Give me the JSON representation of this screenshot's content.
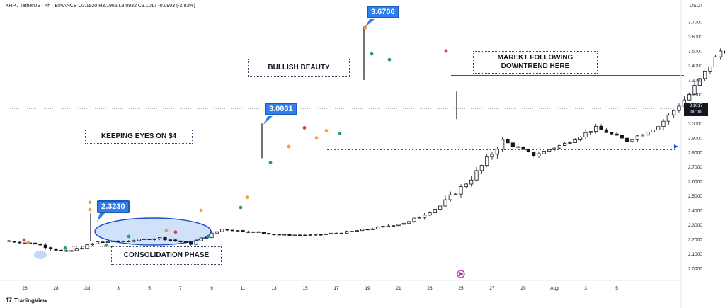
{
  "header": {
    "symbol": "XRP / TetherUS · 4h · BINANCE",
    "ohlc": "O3.1920 H3.1965 L3.0932 C3.1017 -0.0903 (-2.83%)",
    "currency": "USDT"
  },
  "branding": {
    "label": "TradingView"
  },
  "annotations": {
    "consolidation": "CONSOLIDATION PHASE",
    "keeping_eyes": "KEEPING EYES ON $4",
    "bullish": "BULLISH BEAUTY",
    "market_following": "MAREKT FOLLOWING DOWNTREND HERE",
    "callout_1": "2.3230",
    "callout_2": "3.0031",
    "callout_3": "3.6700"
  },
  "last_price": {
    "line1": "3.1017",
    "line2": "00:00"
  },
  "colors": {
    "up": "#131722",
    "down": "#131722",
    "callout": "#2f80ed",
    "resistance": "#1e50c8",
    "consolidation_fill": "#a9c8f5",
    "dot_orange": "#f0a040",
    "dot_red": "#d8403a",
    "dot_green": "#2a9d6a"
  },
  "chart_data": {
    "type": "candlestick",
    "x_ticks": [
      "26",
      "28",
      "Jul",
      "3",
      "5",
      "7",
      "9",
      "11",
      "13",
      "15",
      "17",
      "19",
      "21",
      "23",
      "25",
      "27",
      "29",
      "Aug",
      "3",
      "5"
    ],
    "y_ticks": [
      "3.7000",
      "3.6000",
      "3.5000",
      "3.4000",
      "3.3000",
      "3.2000",
      "3.1000",
      "3.0000",
      "2.9000",
      "2.8000",
      "2.7000",
      "2.6000",
      "2.5000",
      "2.4000",
      "2.3000",
      "2.2000",
      "2.1000",
      "2.0000"
    ],
    "ylim": [
      1.95,
      3.76
    ],
    "price_path": [
      {
        "date": "Jun 25",
        "price": 2.19
      },
      {
        "date": "Jun 26",
        "price": 2.17
      },
      {
        "date": "Jun 27",
        "price": 2.11
      },
      {
        "date": "Jun 28",
        "price": 2.18
      },
      {
        "date": "Jun 29",
        "price": 2.19
      },
      {
        "date": "Jun 30",
        "price": 2.21
      },
      {
        "date": "Jul 1",
        "price": 2.17
      },
      {
        "date": "Jul 2",
        "price": 2.27
      },
      {
        "date": "Jul 3",
        "price": 2.25
      },
      {
        "date": "Jul 4",
        "price": 2.23
      },
      {
        "date": "Jul 5",
        "price": 2.23
      },
      {
        "date": "Jul 6",
        "price": 2.25
      },
      {
        "date": "Jul 7",
        "price": 2.28
      },
      {
        "date": "Jul 8",
        "price": 2.32
      },
      {
        "date": "Jul 9",
        "price": 2.43
      },
      {
        "date": "Jul 10",
        "price": 2.62
      },
      {
        "date": "Jul 11",
        "price": 2.88
      },
      {
        "date": "Jul 12",
        "price": 2.78
      },
      {
        "date": "Jul 13",
        "price": 2.86
      },
      {
        "date": "Jul 14",
        "price": 2.97
      },
      {
        "date": "Jul 15",
        "price": 2.88
      },
      {
        "date": "Jul 16",
        "price": 2.98
      },
      {
        "date": "Jul 17",
        "price": 3.2
      },
      {
        "date": "Jul 18",
        "price": 3.5
      },
      {
        "date": "Jul 19",
        "price": 3.45
      },
      {
        "date": "Jul 20",
        "price": 3.52
      },
      {
        "date": "Jul 21",
        "price": 3.58
      },
      {
        "date": "Jul 22",
        "price": 3.55
      },
      {
        "date": "Jul 23",
        "price": 3.3
      },
      {
        "date": "Jul 23 (last)",
        "price": 3.1017
      }
    ],
    "resistance": 3.33,
    "support": 2.82,
    "last_price": 3.1017,
    "callouts": [
      2.323,
      3.0031,
      3.67
    ]
  }
}
